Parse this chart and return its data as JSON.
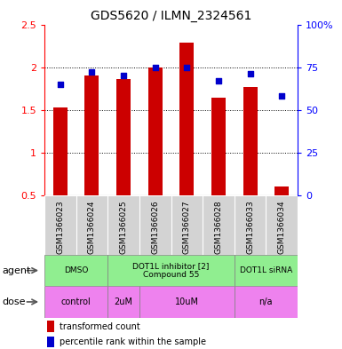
{
  "title": "GDS5620 / ILMN_2324561",
  "samples": [
    "GSM1366023",
    "GSM1366024",
    "GSM1366025",
    "GSM1366026",
    "GSM1366027",
    "GSM1366028",
    "GSM1366033",
    "GSM1366034"
  ],
  "bar_values": [
    1.53,
    1.9,
    1.86,
    2.0,
    2.29,
    1.64,
    1.77,
    0.6
  ],
  "dot_values": [
    65,
    72,
    70,
    75,
    75,
    67,
    71,
    58
  ],
  "bar_color": "#cc0000",
  "dot_color": "#0000cc",
  "ylim_left": [
    0.5,
    2.5
  ],
  "ylim_right": [
    0,
    100
  ],
  "yticks_left": [
    0.5,
    1.0,
    1.5,
    2.0,
    2.5
  ],
  "ytick_labels_left": [
    "0.5",
    "1",
    "1.5",
    "2",
    "2.5"
  ],
  "yticks_right": [
    0,
    25,
    50,
    75,
    100
  ],
  "ytick_labels_right": [
    "0",
    "25",
    "50",
    "75",
    "100%"
  ],
  "grid_values": [
    1.0,
    1.5,
    2.0
  ],
  "agent_groups": [
    {
      "label": "DMSO",
      "start": 0,
      "end": 2,
      "color": "#90ee90"
    },
    {
      "label": "DOT1L inhibitor [2]\nCompound 55",
      "start": 2,
      "end": 6,
      "color": "#90ee90"
    },
    {
      "label": "DOT1L siRNA",
      "start": 6,
      "end": 8,
      "color": "#90ee90"
    }
  ],
  "dose_groups": [
    {
      "label": "control",
      "start": 0,
      "end": 2,
      "color": "#ee82ee"
    },
    {
      "label": "2uM",
      "start": 2,
      "end": 3,
      "color": "#ee82ee"
    },
    {
      "label": "10uM",
      "start": 3,
      "end": 6,
      "color": "#ee82ee"
    },
    {
      "label": "n/a",
      "start": 6,
      "end": 8,
      "color": "#ee82ee"
    }
  ]
}
